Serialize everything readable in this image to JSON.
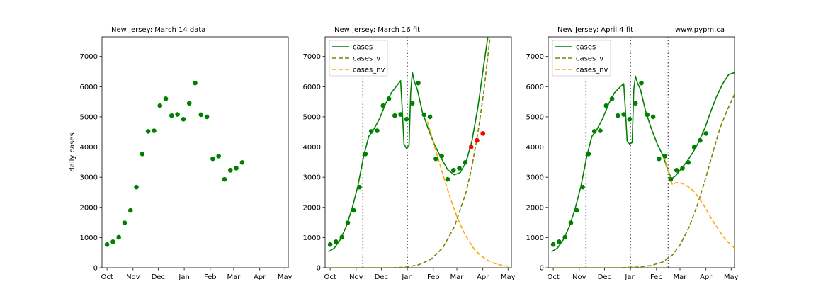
{
  "ylabel": "daily cases",
  "url": "www.pypm.ca",
  "months": [
    "Oct",
    "Nov",
    "Dec",
    "Jan",
    "Feb",
    "Mar",
    "Apr",
    "May"
  ],
  "yticks": [
    0,
    1000,
    2000,
    3000,
    4000,
    5000,
    6000,
    7000
  ],
  "colors": {
    "cases": "#008000",
    "cases_v": "#808000",
    "cases_nv": "#FFA500",
    "data": "#008000",
    "new_data": "#FF0000",
    "vline": "#555555"
  },
  "chart_data": [
    {
      "type": "scatter",
      "title": "New Jersey:  March 14 data",
      "xlim": [
        "2020-09-25",
        "2021-05-05"
      ],
      "ylim": [
        0,
        7650
      ],
      "ylabel": "daily cases",
      "legend": null,
      "points": [
        [
          "2020-10-01",
          770
        ],
        [
          "2020-10-08",
          860
        ],
        [
          "2020-10-15",
          1010
        ],
        [
          "2020-10-22",
          1490
        ],
        [
          "2020-10-29",
          1900
        ],
        [
          "2020-11-05",
          2670
        ],
        [
          "2020-11-12",
          3770
        ],
        [
          "2020-11-19",
          4520
        ],
        [
          "2020-11-26",
          4540
        ],
        [
          "2020-12-03",
          5370
        ],
        [
          "2020-12-10",
          5600
        ],
        [
          "2020-12-17",
          5040
        ],
        [
          "2020-12-24",
          5080
        ],
        [
          "2020-12-31",
          4920
        ],
        [
          "2021-01-07",
          5450
        ],
        [
          "2021-01-14",
          6120
        ],
        [
          "2021-01-21",
          5070
        ],
        [
          "2021-01-28",
          5000
        ],
        [
          "2021-02-04",
          3610
        ],
        [
          "2021-02-11",
          3700
        ],
        [
          "2021-02-18",
          2930
        ],
        [
          "2021-02-25",
          3230
        ],
        [
          "2021-03-04",
          3300
        ],
        [
          "2021-03-11",
          3490
        ]
      ]
    },
    {
      "type": "line",
      "title": "New Jersey:  March 16 fit",
      "xlim": [
        "2020-09-25",
        "2021-05-05"
      ],
      "ylim": [
        0,
        7650
      ],
      "legend": "top-left",
      "vlines": [
        "2020-11-09",
        "2021-01-01"
      ],
      "points": [
        [
          "2020-10-01",
          770
        ],
        [
          "2020-10-08",
          860
        ],
        [
          "2020-10-15",
          1010
        ],
        [
          "2020-10-22",
          1490
        ],
        [
          "2020-10-29",
          1900
        ],
        [
          "2020-11-05",
          2670
        ],
        [
          "2020-11-12",
          3770
        ],
        [
          "2020-11-19",
          4520
        ],
        [
          "2020-11-26",
          4540
        ],
        [
          "2020-12-03",
          5370
        ],
        [
          "2020-12-10",
          5600
        ],
        [
          "2020-12-17",
          5040
        ],
        [
          "2020-12-24",
          5080
        ],
        [
          "2020-12-31",
          4920
        ],
        [
          "2021-01-07",
          5450
        ],
        [
          "2021-01-14",
          6120
        ],
        [
          "2021-01-21",
          5070
        ],
        [
          "2021-01-28",
          5000
        ],
        [
          "2021-02-04",
          3610
        ],
        [
          "2021-02-11",
          3700
        ],
        [
          "2021-02-18",
          2930
        ],
        [
          "2021-02-25",
          3230
        ],
        [
          "2021-03-04",
          3300
        ],
        [
          "2021-03-11",
          3490
        ]
      ],
      "new_points": [
        [
          "2021-03-18",
          4000
        ],
        [
          "2021-03-25",
          4220
        ],
        [
          "2021-04-01",
          4450
        ]
      ],
      "series": [
        {
          "name": "cases",
          "style": "solid",
          "points": [
            [
              "2020-09-29",
              530
            ],
            [
              "2020-10-06",
              650
            ],
            [
              "2020-10-13",
              930
            ],
            [
              "2020-10-20",
              1350
            ],
            [
              "2020-10-27",
              1950
            ],
            [
              "2020-11-03",
              2700
            ],
            [
              "2020-11-10",
              3700
            ],
            [
              "2020-11-16",
              4350
            ],
            [
              "2020-11-22",
              4580
            ],
            [
              "2020-11-29",
              4950
            ],
            [
              "2020-12-06",
              5430
            ],
            [
              "2020-12-13",
              5800
            ],
            [
              "2020-12-20",
              6050
            ],
            [
              "2020-12-24",
              6200
            ],
            [
              "2020-12-26",
              5200
            ],
            [
              "2020-12-28",
              4100
            ],
            [
              "2020-12-31",
              3950
            ],
            [
              "2021-01-03",
              4050
            ],
            [
              "2021-01-05",
              5800
            ],
            [
              "2021-01-07",
              6480
            ],
            [
              "2021-01-09",
              6200
            ],
            [
              "2021-01-13",
              5900
            ],
            [
              "2021-01-19",
              5150
            ],
            [
              "2021-01-26",
              4600
            ],
            [
              "2021-02-02",
              4100
            ],
            [
              "2021-02-10",
              3650
            ],
            [
              "2021-02-18",
              3250
            ],
            [
              "2021-02-26",
              3080
            ],
            [
              "2021-03-05",
              3150
            ],
            [
              "2021-03-12",
              3500
            ],
            [
              "2021-03-19",
              4200
            ],
            [
              "2021-03-26",
              5300
            ],
            [
              "2021-04-02",
              6700
            ],
            [
              "2021-04-07",
              7650
            ]
          ]
        },
        {
          "name": "cases_v",
          "style": "dashed",
          "points": [
            [
              "2020-09-29",
              0
            ],
            [
              "2020-12-15",
              0
            ],
            [
              "2021-01-01",
              20
            ],
            [
              "2021-01-15",
              100
            ],
            [
              "2021-01-29",
              280
            ],
            [
              "2021-02-12",
              650
            ],
            [
              "2021-02-26",
              1350
            ],
            [
              "2021-03-12",
              2500
            ],
            [
              "2021-03-19",
              3350
            ],
            [
              "2021-03-26",
              4450
            ],
            [
              "2021-04-02",
              5800
            ],
            [
              "2021-04-09",
              7500
            ],
            [
              "2021-04-10",
              7650
            ]
          ]
        },
        {
          "name": "cases_nv",
          "style": "dashed",
          "points": [
            [
              "2021-01-25",
              4850
            ],
            [
              "2021-02-01",
              4150
            ],
            [
              "2021-02-08",
              3500
            ],
            [
              "2021-02-15",
              2850
            ],
            [
              "2021-02-22",
              2250
            ],
            [
              "2021-03-01",
              1700
            ],
            [
              "2021-03-08",
              1250
            ],
            [
              "2021-03-15",
              900
            ],
            [
              "2021-03-22",
              600
            ],
            [
              "2021-03-29",
              420
            ],
            [
              "2021-04-05",
              270
            ],
            [
              "2021-04-12",
              170
            ],
            [
              "2021-04-19",
              110
            ],
            [
              "2021-04-26",
              70
            ],
            [
              "2021-05-03",
              45
            ]
          ]
        }
      ]
    },
    {
      "type": "line",
      "title": "New Jersey:  April 4 fit",
      "xlim": [
        "2020-09-25",
        "2021-05-05"
      ],
      "ylim": [
        0,
        7650
      ],
      "legend": "top-left",
      "vlines": [
        "2020-11-09",
        "2021-01-01",
        "2021-02-15"
      ],
      "points": [
        [
          "2020-10-01",
          770
        ],
        [
          "2020-10-08",
          860
        ],
        [
          "2020-10-15",
          1010
        ],
        [
          "2020-10-22",
          1490
        ],
        [
          "2020-10-29",
          1900
        ],
        [
          "2020-11-05",
          2670
        ],
        [
          "2020-11-12",
          3770
        ],
        [
          "2020-11-19",
          4520
        ],
        [
          "2020-11-26",
          4540
        ],
        [
          "2020-12-03",
          5370
        ],
        [
          "2020-12-10",
          5600
        ],
        [
          "2020-12-17",
          5040
        ],
        [
          "2020-12-24",
          5080
        ],
        [
          "2020-12-31",
          4920
        ],
        [
          "2021-01-07",
          5450
        ],
        [
          "2021-01-14",
          6120
        ],
        [
          "2021-01-21",
          5070
        ],
        [
          "2021-01-28",
          5000
        ],
        [
          "2021-02-04",
          3610
        ],
        [
          "2021-02-11",
          3700
        ],
        [
          "2021-02-18",
          2930
        ],
        [
          "2021-02-25",
          3230
        ],
        [
          "2021-03-04",
          3300
        ],
        [
          "2021-03-11",
          3490
        ],
        [
          "2021-03-18",
          4000
        ],
        [
          "2021-03-25",
          4220
        ],
        [
          "2021-04-01",
          4450
        ]
      ],
      "new_points": [],
      "series": [
        {
          "name": "cases",
          "style": "solid",
          "points": [
            [
              "2020-09-29",
              530
            ],
            [
              "2020-10-06",
              650
            ],
            [
              "2020-10-13",
              930
            ],
            [
              "2020-10-20",
              1350
            ],
            [
              "2020-10-27",
              1950
            ],
            [
              "2020-11-03",
              2700
            ],
            [
              "2020-11-10",
              3700
            ],
            [
              "2020-11-16",
              4350
            ],
            [
              "2020-11-22",
              4580
            ],
            [
              "2020-11-29",
              4950
            ],
            [
              "2020-12-06",
              5430
            ],
            [
              "2020-12-13",
              5800
            ],
            [
              "2020-12-20",
              6000
            ],
            [
              "2020-12-24",
              6100
            ],
            [
              "2020-12-26",
              5200
            ],
            [
              "2020-12-28",
              4200
            ],
            [
              "2020-12-31",
              4100
            ],
            [
              "2021-01-03",
              4150
            ],
            [
              "2021-01-05",
              5900
            ],
            [
              "2021-01-07",
              6350
            ],
            [
              "2021-01-09",
              6150
            ],
            [
              "2021-01-13",
              5900
            ],
            [
              "2021-01-19",
              5200
            ],
            [
              "2021-01-26",
              4600
            ],
            [
              "2021-02-02",
              4100
            ],
            [
              "2021-02-09",
              3700
            ],
            [
              "2021-02-15",
              3200
            ],
            [
              "2021-02-19",
              2950
            ],
            [
              "2021-02-24",
              3050
            ],
            [
              "2021-03-03",
              3300
            ],
            [
              "2021-03-10",
              3550
            ],
            [
              "2021-03-17",
              3850
            ],
            [
              "2021-03-24",
              4200
            ],
            [
              "2021-03-31",
              4650
            ],
            [
              "2021-04-07",
              5200
            ],
            [
              "2021-04-14",
              5700
            ],
            [
              "2021-04-21",
              6100
            ],
            [
              "2021-04-28",
              6400
            ],
            [
              "2021-05-05",
              6470
            ]
          ]
        },
        {
          "name": "cases_v",
          "style": "dashed",
          "points": [
            [
              "2020-09-29",
              0
            ],
            [
              "2020-12-20",
              0
            ],
            [
              "2021-01-10",
              20
            ],
            [
              "2021-01-25",
              70
            ],
            [
              "2021-02-08",
              180
            ],
            [
              "2021-02-20",
              420
            ],
            [
              "2021-03-01",
              750
            ],
            [
              "2021-03-12",
              1350
            ],
            [
              "2021-03-22",
              2100
            ],
            [
              "2021-04-01",
              3000
            ],
            [
              "2021-04-10",
              3900
            ],
            [
              "2021-04-18",
              4650
            ],
            [
              "2021-04-26",
              5200
            ],
            [
              "2021-05-05",
              5750
            ]
          ]
        },
        {
          "name": "cases_nv",
          "style": "dashed",
          "points": [
            [
              "2021-02-10",
              3700
            ],
            [
              "2021-02-16",
              3100
            ],
            [
              "2021-02-20",
              2750
            ],
            [
              "2021-02-24",
              2820
            ],
            [
              "2021-03-03",
              2800
            ],
            [
              "2021-03-10",
              2700
            ],
            [
              "2021-03-17",
              2550
            ],
            [
              "2021-03-24",
              2300
            ],
            [
              "2021-03-31",
              2000
            ],
            [
              "2021-04-07",
              1650
            ],
            [
              "2021-04-14",
              1350
            ],
            [
              "2021-04-21",
              1050
            ],
            [
              "2021-04-28",
              830
            ],
            [
              "2021-05-05",
              650
            ]
          ]
        }
      ]
    }
  ]
}
